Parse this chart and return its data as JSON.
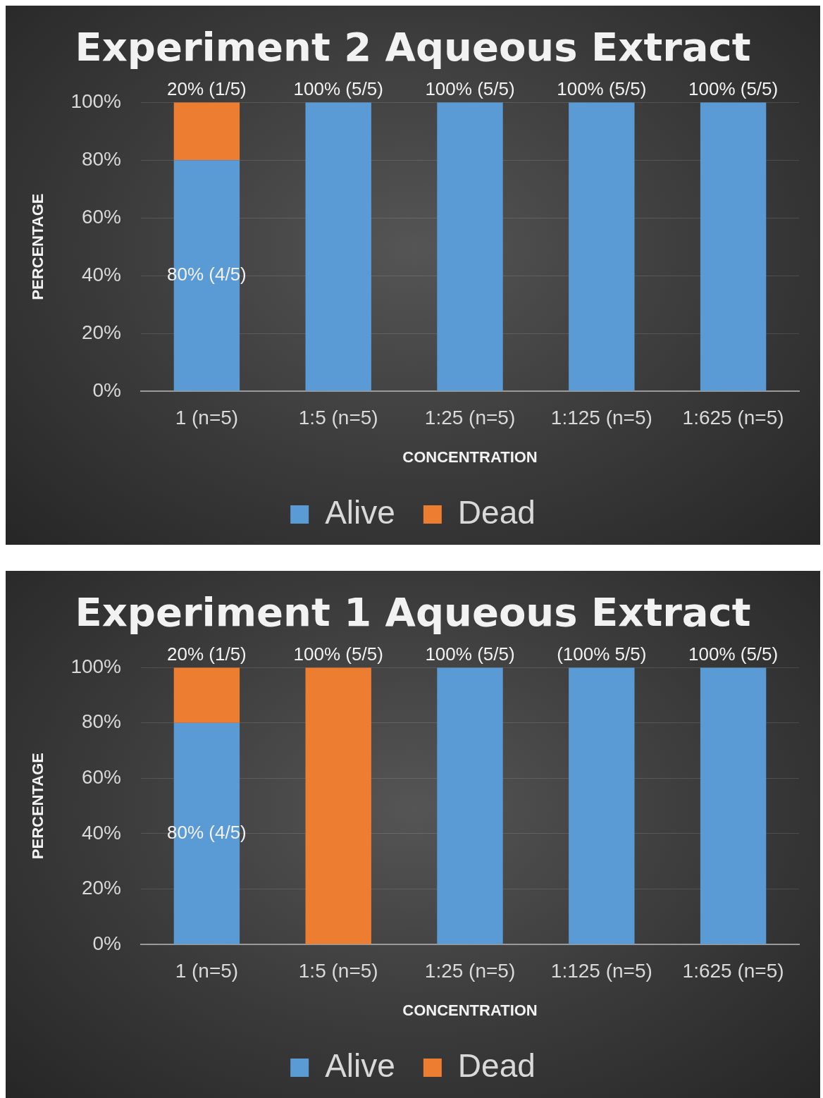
{
  "chart_data": [
    {
      "type": "bar",
      "title": "Experiment 2 Aqueous Extract",
      "xlabel": "CONCENTRATION",
      "ylabel": "PERCENTAGE",
      "categories": [
        "1 (n=5)",
        "1:5 (n=5)",
        "1:25 (n=5)",
        "1:125 (n=5)",
        "1:625 (n=5)"
      ],
      "stacked": true,
      "ylim": [
        0,
        100
      ],
      "yticks": [
        {
          "value": 0,
          "label": "0%"
        },
        {
          "value": 20,
          "label": "20%"
        },
        {
          "value": 40,
          "label": "40%"
        },
        {
          "value": 60,
          "label": "60%"
        },
        {
          "value": 80,
          "label": "80%"
        },
        {
          "value": 100,
          "label": "100%"
        }
      ],
      "grid": "y",
      "legend": "bottom",
      "series": [
        {
          "name": "Alive",
          "color": "#5b9bd5",
          "values": [
            80,
            100,
            100,
            100,
            100
          ],
          "value_labels": [
            "80% (4/5)",
            "100% (5/5)",
            "100% (5/5)",
            "100% (5/5)",
            "100% (5/5)"
          ]
        },
        {
          "name": "Dead",
          "color": "#ed7d31",
          "values": [
            20,
            0,
            0,
            0,
            0
          ],
          "value_labels": [
            "20% (1/5)",
            null,
            null,
            null,
            null
          ]
        }
      ]
    },
    {
      "type": "bar",
      "title": "Experiment 1 Aqueous Extract",
      "xlabel": "CONCENTRATION",
      "ylabel": "PERCENTAGE",
      "categories": [
        "1 (n=5)",
        "1:5 (n=5)",
        "1:25 (n=5)",
        "1:125 (n=5)",
        "1:625 (n=5)"
      ],
      "stacked": true,
      "ylim": [
        0,
        100
      ],
      "yticks": [
        {
          "value": 0,
          "label": "0%"
        },
        {
          "value": 20,
          "label": "20%"
        },
        {
          "value": 40,
          "label": "40%"
        },
        {
          "value": 60,
          "label": "60%"
        },
        {
          "value": 80,
          "label": "80%"
        },
        {
          "value": 100,
          "label": "100%"
        }
      ],
      "grid": "y",
      "legend": "bottom",
      "series": [
        {
          "name": "Alive",
          "color": "#5b9bd5",
          "values": [
            80,
            0,
            100,
            100,
            100
          ],
          "value_labels": [
            "80% (4/5)",
            null,
            "100% (5/5)",
            "(100% 5/5)",
            "100% (5/5)"
          ]
        },
        {
          "name": "Dead",
          "color": "#ed7d31",
          "values": [
            20,
            100,
            0,
            0,
            0
          ],
          "value_labels": [
            "20% (1/5)",
            "100% (5/5)",
            null,
            null,
            null
          ]
        }
      ]
    }
  ]
}
